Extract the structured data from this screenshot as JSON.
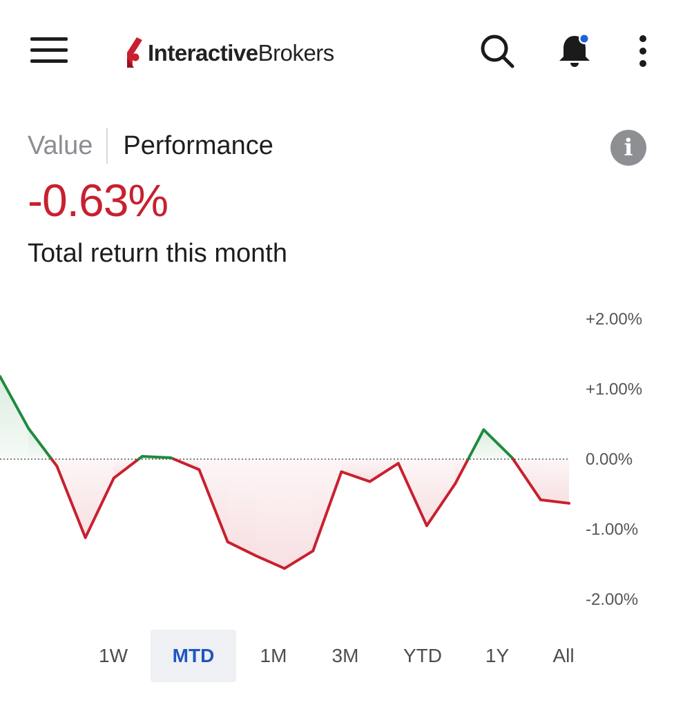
{
  "header": {
    "logo_bold": "Interactive",
    "logo_regular": "Brokers",
    "icons": [
      "menu-icon",
      "search-icon",
      "bell-icon",
      "more-vertical-icon"
    ],
    "notification_dot_color": "#1e63d6"
  },
  "tabs": {
    "value_label": "Value",
    "performance_label": "Performance",
    "active": "Performance",
    "info_glyph": "i"
  },
  "summary": {
    "return_value": "-0.63%",
    "return_label": "Total return this month",
    "negative_color": "#c8202f",
    "positive_color": "#1f8a3e"
  },
  "chart_data": {
    "type": "area",
    "title": "",
    "xlabel": "",
    "ylabel": "",
    "ylim": [
      -2.0,
      2.0
    ],
    "ytick_labels": [
      "+2.00%",
      "+1.00%",
      "0.00%",
      "-1.00%",
      "-2.00%"
    ],
    "ytick_values": [
      2.0,
      1.0,
      0.0,
      -1.0,
      -2.0
    ],
    "baseline": 0.0,
    "x": [
      0,
      1,
      2,
      3,
      4,
      5,
      6,
      7,
      8,
      9,
      10,
      11,
      12,
      13,
      14,
      15,
      16,
      17,
      18,
      19,
      20
    ],
    "values": [
      1.18,
      0.44,
      -0.1,
      -1.12,
      -0.27,
      0.04,
      0.02,
      -0.15,
      -1.18,
      -1.38,
      -1.56,
      -1.31,
      -0.18,
      -0.32,
      -0.06,
      -0.95,
      -0.35,
      0.42,
      0.02,
      -0.58,
      -0.63
    ],
    "grid": false,
    "legend": "none"
  },
  "ranges": {
    "items": [
      "1W",
      "MTD",
      "1M",
      "3M",
      "YTD",
      "1Y",
      "All"
    ],
    "active": "MTD"
  }
}
